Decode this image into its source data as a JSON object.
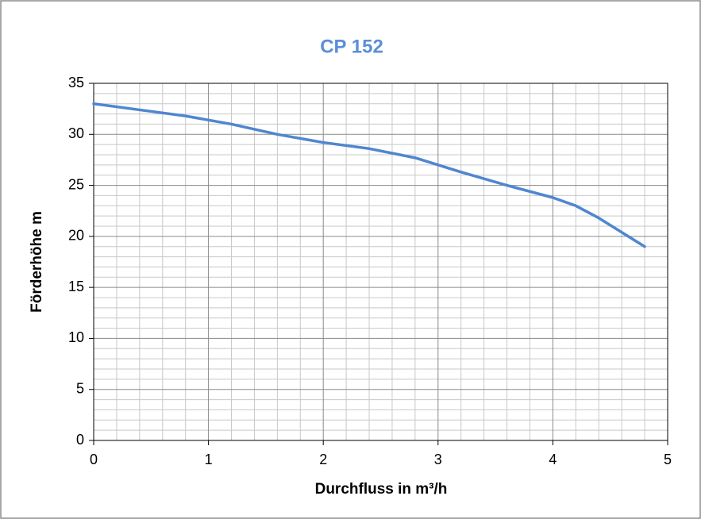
{
  "chart_data": {
    "type": "line",
    "title": "CP 152",
    "x_label": "Durchfluss  in m³/h",
    "y_label": "Förderhöhe  m",
    "x": [
      0,
      0.4,
      0.8,
      1.2,
      1.6,
      2.0,
      2.4,
      2.8,
      3.0,
      3.2,
      3.6,
      4.0,
      4.2,
      4.4,
      4.8
    ],
    "series": [
      {
        "name": "CP 152",
        "color": "#4f86d0",
        "values": [
          33,
          32.4,
          31.8,
          31,
          30,
          29.2,
          28.6,
          27.7,
          27,
          26.3,
          25,
          23.8,
          23,
          21.8,
          19
        ]
      }
    ],
    "xlim": [
      0,
      5
    ],
    "xticks": [
      0,
      1,
      2,
      3,
      4,
      5
    ],
    "ylim": [
      0,
      35
    ],
    "yticks": [
      0,
      5,
      10,
      15,
      20,
      25,
      30,
      35
    ],
    "grid": true,
    "title_color": "#5b8fd6"
  }
}
